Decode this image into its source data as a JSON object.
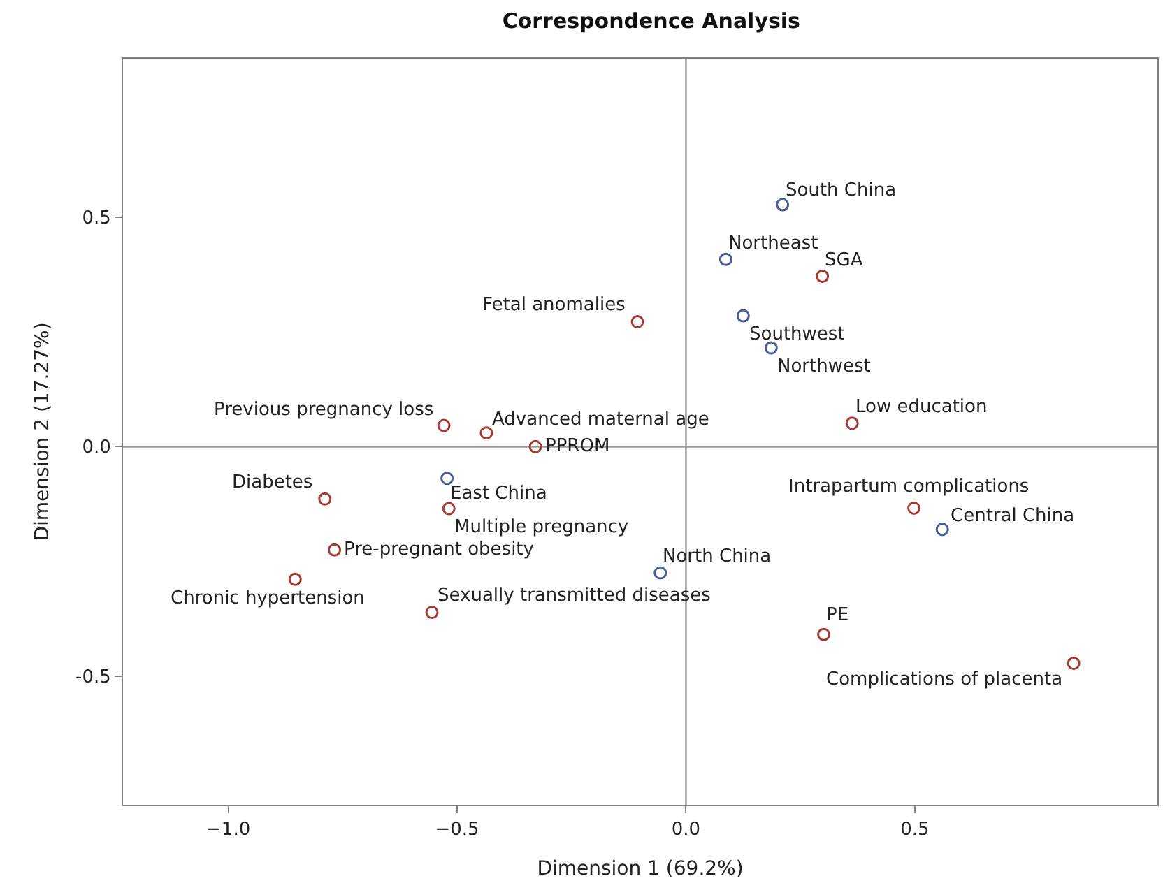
{
  "chart_data": {
    "type": "scatter",
    "title": "Correspondence Analysis",
    "xlabel": "Dimension 1 (69.2%)",
    "ylabel": "Dimension 2 (17.27%)",
    "xlim": [
      -1.23,
      1.03
    ],
    "ylim": [
      -0.78,
      0.845
    ],
    "xticks": [
      {
        "value": -1.0,
        "label": "−1.0"
      },
      {
        "value": -0.5,
        "label": "−0.5"
      },
      {
        "value": 0,
        "label": "0.0"
      },
      0.5
    ],
    "yticks": [
      {
        "value": -0.5,
        "label": "-0.5"
      },
      {
        "value": 0,
        "label": "0.0"
      },
      0.5
    ],
    "grid": false,
    "marker": "circle",
    "ref_lines": [
      {
        "axis": "x",
        "value": 0,
        "color": "#a0a0a0"
      },
      {
        "axis": "y",
        "value": 0,
        "color": "#989898"
      }
    ],
    "series": [
      {
        "color": "#4a5a9c",
        "x": [
          0.211,
          0.087,
          0.125,
          0.186,
          -0.522,
          0.56,
          -0.056
        ],
        "values": [
          0.527,
          0.408,
          0.285,
          0.215,
          -0.069,
          -0.18,
          -0.275
        ]
      },
      {
        "color": "#a43a32",
        "x": [
          0.298,
          -0.106,
          -0.529,
          -0.436,
          -0.329,
          0.363,
          -0.789,
          -0.518,
          0.498,
          -0.768,
          -0.854,
          -0.555,
          0.301,
          0.847
        ],
        "values": [
          0.371,
          0.272,
          0.046,
          0.03,
          0.0,
          0.051,
          -0.114,
          -0.135,
          -0.134,
          -0.225,
          -0.289,
          -0.361,
          -0.409,
          -0.472
        ]
      }
    ],
    "annotations": [
      {
        "text": "South China",
        "x": 0.211,
        "y": 0.527
      },
      {
        "text": "Northeast",
        "x": 0.087,
        "y": 0.408
      },
      {
        "text": "Southwest",
        "x": 0.125,
        "y": 0.285
      },
      {
        "text": "Northwest",
        "x": 0.186,
        "y": 0.215
      },
      {
        "text": "East China",
        "x": -0.522,
        "y": -0.069
      },
      {
        "text": "Central China",
        "x": 0.56,
        "y": -0.18
      },
      {
        "text": "North China",
        "x": -0.056,
        "y": -0.275
      },
      {
        "text": "SGA",
        "x": 0.298,
        "y": 0.371
      },
      {
        "text": "Fetal anomalies",
        "x": -0.106,
        "y": 0.272
      },
      {
        "text": "Previous pregnancy loss",
        "x": -0.529,
        "y": 0.046
      },
      {
        "text": "Advanced maternal age",
        "x": -0.436,
        "y": 0.03
      },
      {
        "text": "PPROM",
        "x": -0.329,
        "y": 0.0
      },
      {
        "text": "Low education",
        "x": 0.363,
        "y": 0.051
      },
      {
        "text": "Diabetes",
        "x": -0.789,
        "y": -0.114
      },
      {
        "text": "Multiple pregnancy",
        "x": -0.518,
        "y": -0.135
      },
      {
        "text": "Intrapartum complications",
        "x": 0.498,
        "y": -0.134
      },
      {
        "text": "Pre-pregnant obesity",
        "x": -0.768,
        "y": -0.225
      },
      {
        "text": "Chronic hypertension",
        "x": -0.854,
        "y": -0.289
      },
      {
        "text": "Sexually transmitted diseases",
        "x": -0.555,
        "y": -0.361
      },
      {
        "text": "PE",
        "x": 0.301,
        "y": -0.409
      },
      {
        "text": "Complications of placenta",
        "x": 0.847,
        "y": -0.472
      }
    ]
  }
}
